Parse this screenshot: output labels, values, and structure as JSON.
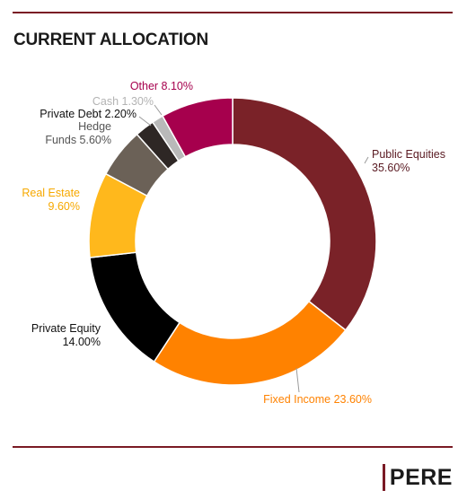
{
  "title": "CURRENT ALLOCATION",
  "brand": "PERE",
  "colors": {
    "rule": "#7a1a24",
    "label_default": "#1a1a1a"
  },
  "chart_data": {
    "type": "pie",
    "donut": true,
    "title": "CURRENT ALLOCATION",
    "legend": "none",
    "slices": [
      {
        "name": "Public Equities",
        "value": 35.6,
        "value_label": "35.60%",
        "color": "#7a2228",
        "label_color": "#5a1a22"
      },
      {
        "name": "Fixed Income",
        "value": 23.6,
        "value_label": "23.60%",
        "color": "#ff8200",
        "label_color": "#ff8200"
      },
      {
        "name": "Private Equity",
        "value": 14.0,
        "value_label": "14.00%",
        "color": "#000000",
        "label_color": "#111111"
      },
      {
        "name": "Real Estate",
        "value": 9.6,
        "value_label": "9.60%",
        "color": "#ffb81c",
        "label_color": "#f6a800"
      },
      {
        "name": "Hedge Funds",
        "value": 5.6,
        "value_label": "5.60%",
        "color": "#6b6157",
        "label_color": "#555555"
      },
      {
        "name": "Private Debt",
        "value": 2.2,
        "value_label": "2.20%",
        "color": "#2e2725",
        "label_color": "#111111"
      },
      {
        "name": "Cash",
        "value": 1.3,
        "value_label": "1.30%",
        "color": "#b9b9b9",
        "label_color": "#b3b3b3"
      },
      {
        "name": "Other",
        "value": 8.1,
        "value_label": "8.10%",
        "color": "#a6004d",
        "label_color": "#a6004d"
      }
    ]
  }
}
